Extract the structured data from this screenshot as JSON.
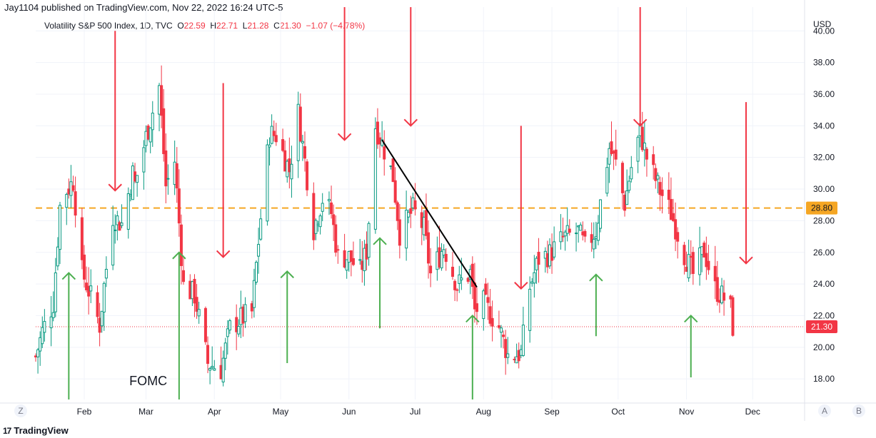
{
  "header": {
    "published": "Jay1104 published on TradingView.com, Nov 22, 2022 16:24 UTC-5",
    "symbol": "Volatility S&P 500 Index, 1D, TVC",
    "o_label": "O",
    "o": "22.59",
    "h_label": "H",
    "h": "22.71",
    "l_label": "L",
    "l": "21.28",
    "c_label": "C",
    "c": "21.30",
    "change": "−1.07 (−4.78%)"
  },
  "footer": {
    "logo": "TradingView",
    "logo_mark": "17",
    "z_btn": "Z",
    "a_btn": "A",
    "b_btn": "B"
  },
  "colors": {
    "up": "#089981",
    "down": "#f23645",
    "level": "#f5a623",
    "arrow_up": "#4caf50",
    "arrow_down": "#f23645",
    "trend": "#000000"
  },
  "chart_data": {
    "type": "candlestick",
    "currency_label": "USD",
    "ylim": [
      16.7,
      41.5
    ],
    "y_ticks": [
      "18.00",
      "20.00",
      "22.00",
      "24.00",
      "26.00",
      "28.00",
      "30.00",
      "32.00",
      "34.00",
      "36.00",
      "38.00",
      "40.00"
    ],
    "x_range": [
      "2022-01-10",
      "2022-12-31"
    ],
    "x_ticks": [
      {
        "label": "Feb",
        "date": "2022-02-01"
      },
      {
        "label": "Mar",
        "date": "2022-03-01"
      },
      {
        "label": "Apr",
        "date": "2022-04-01"
      },
      {
        "label": "May",
        "date": "2022-05-01"
      },
      {
        "label": "Jun",
        "date": "2022-06-01"
      },
      {
        "label": "Jul",
        "date": "2022-07-01"
      },
      {
        "label": "Aug",
        "date": "2022-08-01"
      },
      {
        "label": "Sep",
        "date": "2022-09-01"
      },
      {
        "label": "Oct",
        "date": "2022-10-01"
      },
      {
        "label": "Nov",
        "date": "2022-11-01"
      },
      {
        "label": "Dec",
        "date": "2022-12-01"
      }
    ],
    "close_anchors": [
      [
        "2022-01-10",
        19.4
      ],
      [
        "2022-01-13",
        21.0
      ],
      [
        "2022-01-18",
        22.8
      ],
      [
        "2022-01-21",
        28.9
      ],
      [
        "2022-01-24",
        29.9
      ],
      [
        "2022-01-27",
        30.5
      ],
      [
        "2022-01-31",
        24.8
      ],
      [
        "2022-02-04",
        23.2
      ],
      [
        "2022-02-08",
        21.4
      ],
      [
        "2022-02-10",
        23.9
      ],
      [
        "2022-02-14",
        28.3
      ],
      [
        "2022-02-18",
        27.8
      ],
      [
        "2022-02-23",
        31.0
      ],
      [
        "2022-02-24",
        30.3
      ],
      [
        "2022-03-01",
        33.3
      ],
      [
        "2022-03-07",
        36.5
      ],
      [
        "2022-03-10",
        30.2
      ],
      [
        "2022-03-14",
        31.8
      ],
      [
        "2022-03-18",
        23.9
      ],
      [
        "2022-03-23",
        23.3
      ],
      [
        "2022-03-29",
        19.0
      ],
      [
        "2022-04-04",
        18.6
      ],
      [
        "2022-04-08",
        21.2
      ],
      [
        "2022-04-13",
        21.8
      ],
      [
        "2022-04-18",
        22.2
      ],
      [
        "2022-04-22",
        28.2
      ],
      [
        "2022-04-26",
        33.5
      ],
      [
        "2022-04-29",
        33.4
      ],
      [
        "2022-05-05",
        31.2
      ],
      [
        "2022-05-09",
        34.8
      ],
      [
        "2022-05-12",
        31.8
      ],
      [
        "2022-05-16",
        27.5
      ],
      [
        "2022-05-20",
        29.4
      ],
      [
        "2022-05-24",
        28.5
      ],
      [
        "2022-05-27",
        25.7
      ],
      [
        "2022-06-01",
        25.7
      ],
      [
        "2022-06-06",
        24.8
      ],
      [
        "2022-06-09",
        26.1
      ],
      [
        "2022-06-13",
        34.0
      ],
      [
        "2022-06-16",
        32.9
      ],
      [
        "2022-06-21",
        30.8
      ],
      [
        "2022-06-24",
        27.2
      ],
      [
        "2022-06-30",
        28.7
      ],
      [
        "2022-07-05",
        27.5
      ],
      [
        "2022-07-08",
        24.6
      ],
      [
        "2022-07-14",
        26.4
      ],
      [
        "2022-07-20",
        23.9
      ],
      [
        "2022-07-26",
        24.7
      ],
      [
        "2022-07-28",
        22.3
      ],
      [
        "2022-08-01",
        22.8
      ],
      [
        "2022-08-08",
        21.3
      ],
      [
        "2022-08-12",
        19.5
      ],
      [
        "2022-08-18",
        19.6
      ],
      [
        "2022-08-22",
        23.8
      ],
      [
        "2022-08-26",
        25.6
      ],
      [
        "2022-08-31",
        25.9
      ],
      [
        "2022-09-06",
        26.9
      ],
      [
        "2022-09-13",
        27.3
      ],
      [
        "2022-09-16",
        26.3
      ],
      [
        "2022-09-21",
        27.4
      ],
      [
        "2022-09-27",
        32.6
      ],
      [
        "2022-09-30",
        31.6
      ],
      [
        "2022-10-04",
        29.1
      ],
      [
        "2022-10-07",
        31.4
      ],
      [
        "2022-10-11",
        33.6
      ],
      [
        "2022-10-14",
        32.0
      ],
      [
        "2022-10-20",
        29.9
      ],
      [
        "2022-10-25",
        28.5
      ],
      [
        "2022-10-31",
        25.9
      ],
      [
        "2022-11-04",
        24.6
      ],
      [
        "2022-11-09",
        26.1
      ],
      [
        "2022-11-14",
        23.7
      ],
      [
        "2022-11-18",
        23.1
      ],
      [
        "2022-11-21",
        22.4
      ],
      [
        "2022-11-22",
        21.3
      ]
    ],
    "last_price": 21.3,
    "last_price_label": "21.30",
    "level_line": 28.8,
    "level_label": "28.80",
    "trend_line": [
      [
        "2022-06-16",
        33.1
      ],
      [
        "2022-07-29",
        23.8
      ]
    ],
    "annotations": [
      {
        "text": "FOMC",
        "date": "2022-03-02",
        "value": 17.6
      }
    ],
    "green_arrows": [
      {
        "date": "2022-01-25",
        "top": 24.7,
        "bottom": 16.7
      },
      {
        "date": "2022-03-16",
        "top": 26.0,
        "bottom": 16.7
      },
      {
        "date": "2022-05-04",
        "top": 24.8,
        "bottom": 19.0
      },
      {
        "date": "2022-06-15",
        "top": 26.9,
        "bottom": 21.2
      },
      {
        "date": "2022-07-27",
        "top": 22.0,
        "bottom": 16.7
      },
      {
        "date": "2022-09-21",
        "top": 24.6,
        "bottom": 20.7
      },
      {
        "date": "2022-11-03",
        "top": 22.0,
        "bottom": 18.1
      }
    ],
    "red_arrows": [
      {
        "date": "2022-02-15",
        "top": 40.0,
        "bottom": 29.9
      },
      {
        "date": "2022-04-05",
        "top": 36.7,
        "bottom": 25.7
      },
      {
        "date": "2022-05-30",
        "top": 41.5,
        "bottom": 33.1
      },
      {
        "date": "2022-06-29",
        "top": 41.5,
        "bottom": 34.0
      },
      {
        "date": "2022-08-18",
        "top": 34.0,
        "bottom": 23.7
      },
      {
        "date": "2022-10-11",
        "top": 41.5,
        "bottom": 34.0
      },
      {
        "date": "2022-11-28",
        "top": 35.5,
        "bottom": 25.3
      }
    ]
  }
}
